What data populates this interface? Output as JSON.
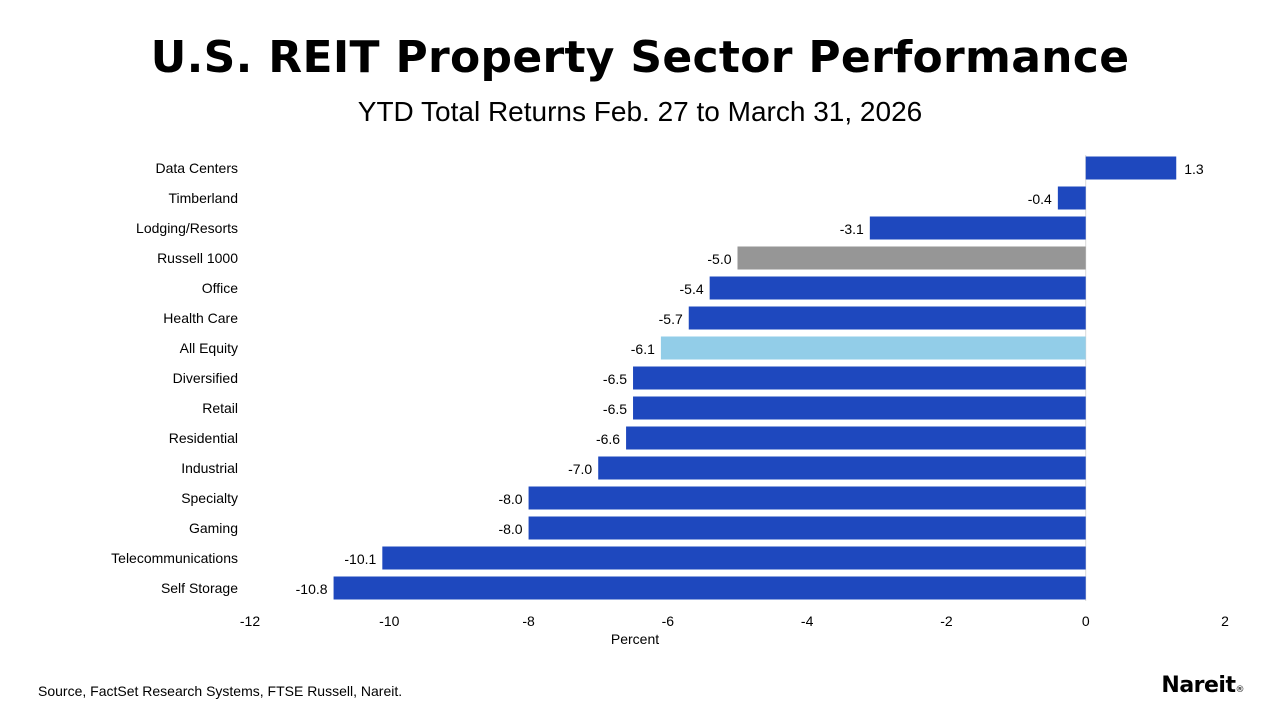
{
  "header": {
    "title": "U.S. REIT Property Sector Performance",
    "subtitle": "YTD Total Returns Feb. 27 to March 31, 2026"
  },
  "footer": {
    "source": "Source, FactSet Research Systems, FTSE Russell, Nareit.",
    "logo_text": "Nareit",
    "logo_mark": "®"
  },
  "colors": {
    "sector": "#1E48BE",
    "benchmark": "#969696",
    "all_equity": "#92CDE8"
  },
  "chart_data": {
    "type": "bar",
    "orientation": "horizontal",
    "title": "U.S. REIT Property Sector Performance",
    "subtitle": "YTD Total Returns Feb. 27 to March 31, 2026",
    "xlabel": "Percent",
    "ylabel": "",
    "xlim": [
      -12,
      2
    ],
    "xticks": [
      -12,
      -10,
      -8,
      -6,
      -4,
      -2,
      0,
      2
    ],
    "grid": false,
    "legend": "none",
    "categories": [
      "Data Centers",
      "Timberland",
      "Lodging/Resorts",
      "Russell 1000",
      "Office",
      "Health Care",
      "All Equity",
      "Diversified",
      "Retail",
      "Residential",
      "Industrial",
      "Specialty",
      "Gaming",
      "Telecommunications",
      "Self Storage"
    ],
    "values": [
      1.3,
      -0.4,
      -3.1,
      -5.0,
      -5.4,
      -5.7,
      -6.1,
      -6.5,
      -6.5,
      -6.6,
      -7.0,
      -8.0,
      -8.0,
      -10.1,
      -10.8
    ],
    "value_labels": [
      "1.3",
      "-0.4",
      "-3.1",
      "-5.0",
      "-5.4",
      "-5.7",
      "-6.1",
      "-6.5",
      "-6.5",
      "-6.6",
      "-7.0",
      "-8.0",
      "-8.0",
      "-10.1",
      "-10.8"
    ],
    "bar_colors": [
      "#1E48BE",
      "#1E48BE",
      "#1E48BE",
      "#969696",
      "#1E48BE",
      "#1E48BE",
      "#92CDE8",
      "#1E48BE",
      "#1E48BE",
      "#1E48BE",
      "#1E48BE",
      "#1E48BE",
      "#1E48BE",
      "#1E48BE",
      "#1E48BE"
    ]
  }
}
